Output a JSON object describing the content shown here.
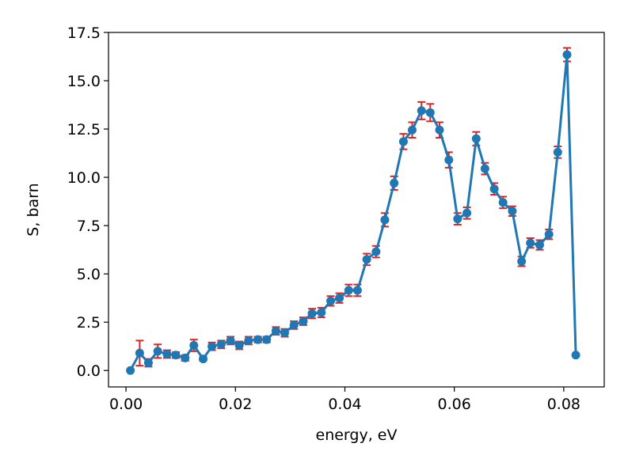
{
  "chart_data": {
    "type": "line",
    "xlabel": "energy, eV",
    "ylabel": "S, barn",
    "xlim": [
      -0.0032,
      0.0874
    ],
    "ylim": [
      -0.85,
      17.5
    ],
    "xticks": [
      0.0,
      0.02,
      0.04,
      0.06,
      0.08
    ],
    "xtick_labels": [
      "0.00",
      "0.02",
      "0.04",
      "0.06",
      "0.08"
    ],
    "yticks": [
      0.0,
      2.5,
      5.0,
      7.5,
      10.0,
      12.5,
      15.0,
      17.5
    ],
    "ytick_labels": [
      "0.0",
      "2.5",
      "5.0",
      "7.5",
      "10.0",
      "12.5",
      "15.0",
      "17.5"
    ],
    "grid": false,
    "colors": {
      "line": "#1f77b4",
      "marker": "#1f77b4",
      "errorbar": "#d62728"
    },
    "series": [
      {
        "x": [
          0.0008,
          0.0025,
          0.0041,
          0.0058,
          0.0075,
          0.0091,
          0.0108,
          0.0124,
          0.0141,
          0.0157,
          0.0174,
          0.0191,
          0.0207,
          0.0224,
          0.0241,
          0.0257,
          0.0274,
          0.029,
          0.0307,
          0.0324,
          0.034,
          0.0357,
          0.0374,
          0.039,
          0.0407,
          0.0423,
          0.044,
          0.0457,
          0.0473,
          0.049,
          0.0507,
          0.0523,
          0.054,
          0.0556,
          0.0573,
          0.059,
          0.0606,
          0.0623,
          0.064,
          0.0656,
          0.0673,
          0.0689,
          0.0706,
          0.0723,
          0.0739,
          0.0756,
          0.0773,
          0.0789,
          0.0806,
          0.0822
        ],
        "y": [
          0.0,
          0.9,
          0.4,
          1.0,
          0.85,
          0.8,
          0.65,
          1.3,
          0.6,
          1.25,
          1.35,
          1.55,
          1.3,
          1.55,
          1.6,
          1.6,
          2.05,
          1.95,
          2.35,
          2.55,
          2.95,
          3.0,
          3.6,
          3.75,
          4.15,
          4.15,
          5.75,
          6.15,
          7.8,
          9.7,
          11.85,
          12.45,
          13.45,
          13.35,
          12.45,
          10.9,
          7.85,
          8.15,
          12.0,
          10.45,
          9.4,
          8.7,
          8.25,
          5.65,
          6.6,
          6.5,
          7.05,
          11.3,
          16.35,
          0.8
        ],
        "err": [
          0.0,
          0.65,
          0.2,
          0.35,
          0.2,
          0.15,
          0.15,
          0.3,
          0.1,
          0.2,
          0.2,
          0.2,
          0.2,
          0.2,
          0.15,
          0.15,
          0.2,
          0.2,
          0.2,
          0.2,
          0.25,
          0.25,
          0.25,
          0.25,
          0.3,
          0.3,
          0.3,
          0.3,
          0.35,
          0.35,
          0.4,
          0.4,
          0.45,
          0.45,
          0.4,
          0.4,
          0.3,
          0.3,
          0.35,
          0.3,
          0.3,
          0.3,
          0.25,
          0.25,
          0.25,
          0.25,
          0.25,
          0.3,
          0.35,
          0.0
        ]
      }
    ]
  }
}
